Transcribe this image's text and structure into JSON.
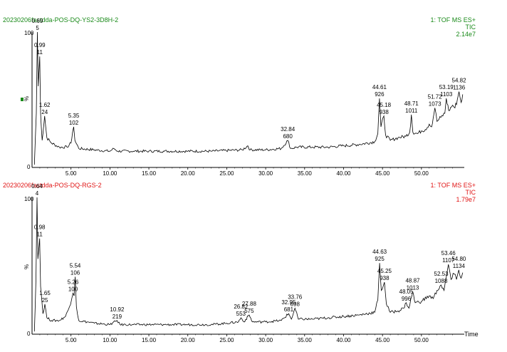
{
  "chart_data": [
    {
      "type": "line",
      "sample_name": "20230206fastdda-POS-DQ-YS2-3D8H-2",
      "function_label": "1: TOF MS ES+",
      "mode_label": "TIC",
      "intensity_label": "2.14e7",
      "color": "#1a8a1a",
      "y_axis_top_label": "100",
      "y_axis_bottom_label": "0",
      "y_axis_unit": "%",
      "xlim": [
        0,
        55.5
      ],
      "ylim": [
        0,
        100
      ],
      "x_ticks": [
        "5.00",
        "10.00",
        "15.00",
        "20.00",
        "25.00",
        "30.00",
        "35.00",
        "40.00",
        "45.00",
        "50.00"
      ],
      "x_tick_values": [
        5,
        10,
        15,
        20,
        25,
        30,
        35,
        40,
        45,
        50
      ],
      "peaks": [
        {
          "time": "0.69",
          "scan": "5",
          "x": 0.69,
          "y": 100
        },
        {
          "time": "0.99",
          "scan": "11",
          "x": 0.99,
          "y": 82
        },
        {
          "time": "1.62",
          "scan": "24",
          "x": 1.62,
          "y": 38
        },
        {
          "time": "5.35",
          "scan": "102",
          "x": 5.35,
          "y": 30
        },
        {
          "time": "32.84",
          "scan": "680",
          "x": 32.84,
          "y": 20
        },
        {
          "time": "44.61",
          "scan": "926",
          "x": 44.61,
          "y": 51
        },
        {
          "time": "45.18",
          "scan": "938",
          "x": 45.18,
          "y": 38
        },
        {
          "time": "48.71",
          "scan": "1011",
          "x": 48.71,
          "y": 39
        },
        {
          "time": "51.72",
          "scan": "1073",
          "x": 51.72,
          "y": 44
        },
        {
          "time": "53.19",
          "scan": "1103",
          "x": 53.19,
          "y": 51
        },
        {
          "time": "54.82",
          "scan": "1136",
          "x": 54.82,
          "y": 56
        }
      ],
      "trace": [
        [
          0.3,
          2
        ],
        [
          0.55,
          40
        ],
        [
          0.69,
          100
        ],
        [
          0.8,
          60
        ],
        [
          0.99,
          82
        ],
        [
          1.1,
          40
        ],
        [
          1.3,
          20
        ],
        [
          1.62,
          38
        ],
        [
          1.9,
          22
        ],
        [
          2.5,
          18
        ],
        [
          3.5,
          15
        ],
        [
          4.5,
          15
        ],
        [
          5.0,
          18
        ],
        [
          5.2,
          26
        ],
        [
          5.35,
          30
        ],
        [
          5.5,
          20
        ],
        [
          6,
          14
        ],
        [
          8,
          13
        ],
        [
          10,
          12
        ],
        [
          10.5,
          14
        ],
        [
          11,
          12
        ],
        [
          13,
          12
        ],
        [
          15,
          12
        ],
        [
          17,
          12
        ],
        [
          20,
          12
        ],
        [
          23,
          12
        ],
        [
          27,
          13
        ],
        [
          27.7,
          16
        ],
        [
          28,
          13
        ],
        [
          30,
          13
        ],
        [
          32,
          14
        ],
        [
          32.84,
          20
        ],
        [
          33.2,
          14
        ],
        [
          34,
          15
        ],
        [
          36,
          15
        ],
        [
          38,
          15
        ],
        [
          40,
          16
        ],
        [
          42,
          17
        ],
        [
          44,
          19
        ],
        [
          44.4,
          25
        ],
        [
          44.61,
          51
        ],
        [
          44.8,
          30
        ],
        [
          45.18,
          38
        ],
        [
          45.4,
          24
        ],
        [
          46,
          20
        ],
        [
          47,
          22
        ],
        [
          48,
          23
        ],
        [
          48.5,
          26
        ],
        [
          48.71,
          39
        ],
        [
          48.9,
          26
        ],
        [
          49.5,
          25
        ],
        [
          50,
          27
        ],
        [
          50.5,
          28
        ],
        [
          51,
          32
        ],
        [
          51.3,
          30
        ],
        [
          51.72,
          44
        ],
        [
          52,
          34
        ],
        [
          52.5,
          37
        ],
        [
          53,
          40
        ],
        [
          53.19,
          51
        ],
        [
          53.5,
          42
        ],
        [
          54,
          46
        ],
        [
          54.3,
          44
        ],
        [
          54.6,
          50
        ],
        [
          54.82,
          56
        ],
        [
          55.1,
          48
        ],
        [
          55.3,
          54
        ]
      ]
    },
    {
      "type": "line",
      "sample_name": "20230206fastdda-POS-DQ-RGS-2",
      "function_label": "1: TOF MS ES+",
      "mode_label": "TIC",
      "intensity_label": "1.79e7",
      "color": "#e01515",
      "y_axis_top_label": "100",
      "y_axis_bottom_label": "0",
      "y_axis_unit": "%",
      "xlabel": "Time",
      "xlim": [
        0,
        55.5
      ],
      "ylim": [
        0,
        100
      ],
      "x_ticks": [
        "5.00",
        "10.00",
        "15.00",
        "20.00",
        "25.00",
        "30.00",
        "35.00",
        "40.00",
        "45.00",
        "50.00"
      ],
      "x_tick_values": [
        5,
        10,
        15,
        20,
        25,
        30,
        35,
        40,
        45,
        50
      ],
      "peaks": [
        {
          "time": "0.64",
          "scan": "4",
          "x": 0.64,
          "y": 100
        },
        {
          "time": "0.98",
          "scan": "11",
          "x": 0.98,
          "y": 70
        },
        {
          "time": "1.65",
          "scan": "25",
          "x": 1.65,
          "y": 22
        },
        {
          "time": "5.26",
          "scan": "100",
          "x": 5.26,
          "y": 30
        },
        {
          "time": "5.54",
          "scan": "106",
          "x": 5.54,
          "y": 42
        },
        {
          "time": "10.92",
          "scan": "219",
          "x": 10.92,
          "y": 10
        },
        {
          "time": "26.82",
          "scan": "553",
          "x": 26.82,
          "y": 12
        },
        {
          "time": "27.88",
          "scan": "575",
          "x": 27.88,
          "y": 14
        },
        {
          "time": "32.95",
          "scan": "681",
          "x": 32.95,
          "y": 15
        },
        {
          "time": "33.76",
          "scan": "698",
          "x": 33.76,
          "y": 19
        },
        {
          "time": "44.63",
          "scan": "925",
          "x": 44.63,
          "y": 52
        },
        {
          "time": "45.25",
          "scan": "938",
          "x": 45.25,
          "y": 38
        },
        {
          "time": "48.05",
          "scan": "996",
          "x": 48.05,
          "y": 23
        },
        {
          "time": "48.87",
          "scan": "1013",
          "x": 48.87,
          "y": 31
        },
        {
          "time": "52.53",
          "scan": "1088",
          "x": 52.53,
          "y": 36
        },
        {
          "time": "53.46",
          "scan": "1107",
          "x": 53.46,
          "y": 51
        },
        {
          "time": "54.80",
          "scan": "1134",
          "x": 54.8,
          "y": 47
        }
      ],
      "trace": [
        [
          0.3,
          2
        ],
        [
          0.5,
          40
        ],
        [
          0.64,
          100
        ],
        [
          0.75,
          55
        ],
        [
          0.98,
          70
        ],
        [
          1.1,
          35
        ],
        [
          1.4,
          15
        ],
        [
          1.65,
          22
        ],
        [
          1.9,
          12
        ],
        [
          2.5,
          10
        ],
        [
          3.5,
          10
        ],
        [
          4.3,
          13
        ],
        [
          4.8,
          20
        ],
        [
          5.1,
          26
        ],
        [
          5.26,
          30
        ],
        [
          5.4,
          28
        ],
        [
          5.54,
          42
        ],
        [
          5.7,
          20
        ],
        [
          6,
          10
        ],
        [
          8,
          8
        ],
        [
          10,
          7
        ],
        [
          10.92,
          10
        ],
        [
          11.3,
          7
        ],
        [
          13,
          7
        ],
        [
          15,
          7
        ],
        [
          17,
          7
        ],
        [
          20,
          7
        ],
        [
          23,
          7
        ],
        [
          25,
          8
        ],
        [
          26.5,
          9
        ],
        [
          26.82,
          12
        ],
        [
          27.2,
          9
        ],
        [
          27.88,
          14
        ],
        [
          28.3,
          9
        ],
        [
          30,
          9
        ],
        [
          32,
          10
        ],
        [
          32.95,
          15
        ],
        [
          33.3,
          11
        ],
        [
          33.76,
          19
        ],
        [
          34.2,
          11
        ],
        [
          36,
          11
        ],
        [
          38,
          12
        ],
        [
          40,
          13
        ],
        [
          42,
          14
        ],
        [
          44,
          16
        ],
        [
          44.4,
          25
        ],
        [
          44.63,
          52
        ],
        [
          44.85,
          32
        ],
        [
          45.25,
          38
        ],
        [
          45.5,
          22
        ],
        [
          46,
          16
        ],
        [
          47,
          17
        ],
        [
          47.7,
          19
        ],
        [
          48.05,
          23
        ],
        [
          48.4,
          19
        ],
        [
          48.87,
          31
        ],
        [
          49.2,
          23
        ],
        [
          50,
          24
        ],
        [
          51,
          28
        ],
        [
          51.5,
          26
        ],
        [
          52,
          32
        ],
        [
          52.53,
          36
        ],
        [
          52.9,
          32
        ],
        [
          53.2,
          42
        ],
        [
          53.46,
          51
        ],
        [
          53.8,
          40
        ],
        [
          54.2,
          44
        ],
        [
          54.5,
          40
        ],
        [
          54.8,
          47
        ],
        [
          55.1,
          41
        ],
        [
          55.3,
          45
        ]
      ]
    }
  ]
}
